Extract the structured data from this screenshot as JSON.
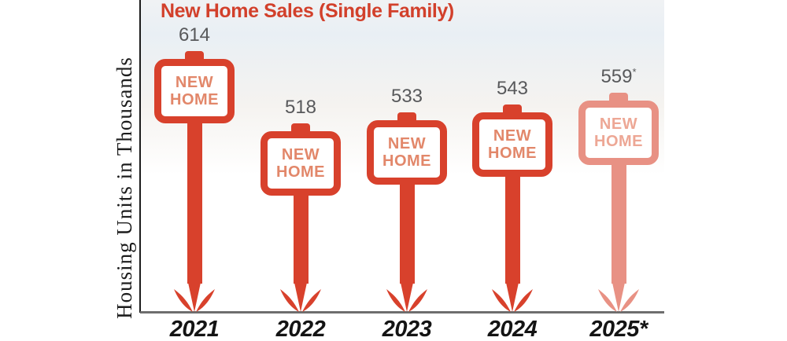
{
  "title": "New Home Sales (Single Family)",
  "y_axis_label": "Housing Units in Thousands",
  "sign_text": {
    "line1": "NEW",
    "line2": "HOME"
  },
  "colors": {
    "title": "#d2402b",
    "sign_red": "#d8412c",
    "sign_red_faded": "#e89184",
    "sign_text": "#e2876a",
    "sign_text_faded": "#eda795",
    "value_text": "#58595b",
    "year_text": "#141414",
    "y_axis": "#1c1c1c",
    "x_axis": "#6e6e6e",
    "board_fill": "#ffffff"
  },
  "chart_data": {
    "type": "bar",
    "title": "New Home Sales (Single Family)",
    "xlabel": "",
    "ylabel": "Housing Units in Thousands",
    "categories": [
      "2021",
      "2022",
      "2023",
      "2024",
      "2025*"
    ],
    "values": [
      614,
      518,
      533,
      543,
      559
    ],
    "ylim": [
      0,
      650
    ],
    "grid": false,
    "legend": false,
    "points": [
      {
        "year": "2021",
        "value": 614,
        "label": "614",
        "asterisk": false,
        "faded": false
      },
      {
        "year": "2022",
        "value": 518,
        "label": "518",
        "asterisk": false,
        "faded": false
      },
      {
        "year": "2023",
        "value": 533,
        "label": "533",
        "asterisk": false,
        "faded": false
      },
      {
        "year": "2024",
        "value": 543,
        "label": "543",
        "asterisk": false,
        "faded": false
      },
      {
        "year": "2025*",
        "value": 559,
        "label": "559",
        "asterisk": true,
        "faded": true
      }
    ]
  }
}
